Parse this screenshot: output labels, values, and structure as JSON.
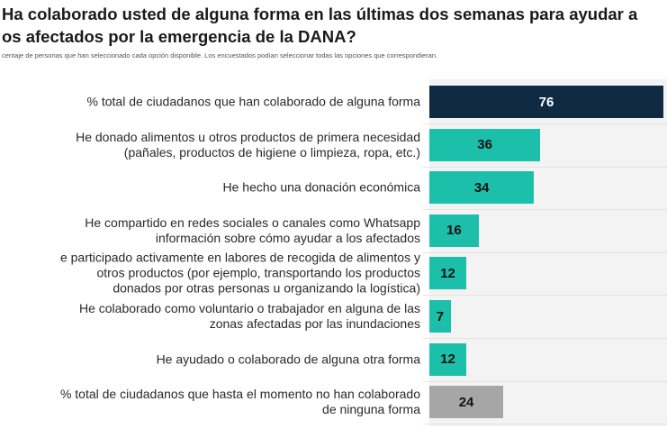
{
  "chart_data": {
    "type": "bar",
    "orientation": "horizontal",
    "title_lines": [
      "Ha colaborado usted de alguna forma en las últimas dos semanas para ayudar a",
      "os afectados por la emergencia de la DANA?"
    ],
    "subtitle": "centaje de personas que han seleccionado cada opción disponible. Los encuestados podían seleccionar todas las opciones que correspondieran.",
    "xlim": [
      0,
      76
    ],
    "grid": true,
    "categories": [
      "% total de ciudadanos que han colaborado de alguna forma",
      "He donado alimentos u otros productos de primera necesidad\n(pañales, productos de higiene o limpieza, ropa, etc.)",
      "He hecho una donación económica",
      "He compartido en redes sociales o canales como Whatsapp\ninformación sobre cómo ayudar a los afectados",
      "e participado activamente en labores de recogida de alimentos y\notros productos (por ejemplo, transportando los productos\ndonados por otras personas u organizando la logística)",
      "He colaborado como voluntario o trabajador en alguna de las\nzonas afectadas por las inundaciones",
      "He ayudado o colaborado de alguna otra forma",
      "% total de ciudadanos que hasta el momento no han colaborado\nde ninguna forma"
    ],
    "values": [
      76,
      36,
      34,
      16,
      12,
      7,
      12,
      24
    ],
    "colors": [
      "#102a43",
      "#1bbfaa",
      "#1bbfaa",
      "#1bbfaa",
      "#1bbfaa",
      "#1bbfaa",
      "#1bbfaa",
      "#a6a6a6"
    ],
    "label_colors": [
      "#ffffff",
      "#111111",
      "#111111",
      "#111111",
      "#111111",
      "#111111",
      "#111111",
      "#111111"
    ]
  }
}
